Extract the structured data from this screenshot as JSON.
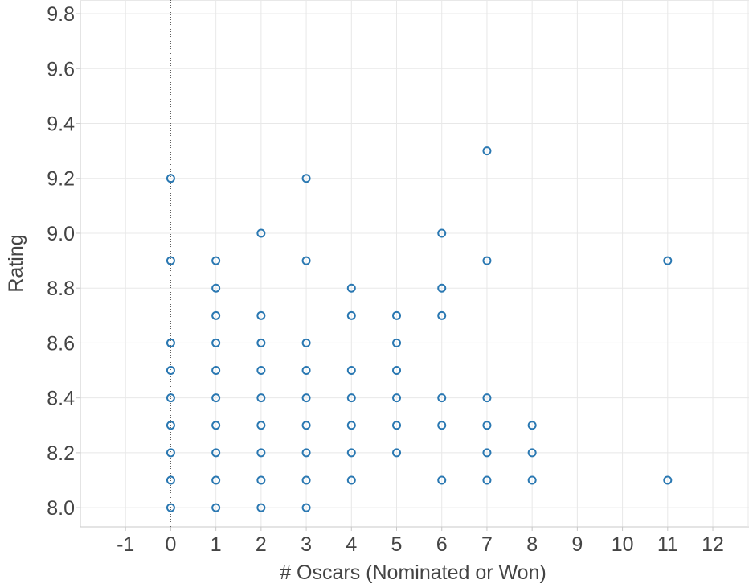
{
  "chart_data": {
    "type": "scatter",
    "title": "",
    "xlabel": "# Oscars (Nominated or Won)",
    "ylabel": "Rating",
    "xlim": [
      -2,
      12.8
    ],
    "ylim": [
      7.93,
      9.85
    ],
    "x_ticks": [
      -1,
      0,
      1,
      2,
      3,
      4,
      5,
      6,
      7,
      8,
      9,
      10,
      11,
      12
    ],
    "y_ticks": [
      8.0,
      8.2,
      8.4,
      8.6,
      8.8,
      9.0,
      9.2,
      9.4,
      9.6,
      9.8
    ],
    "grid": true,
    "marker": "hollow-circle",
    "point_color": "#2a78b2",
    "series": [
      {
        "points": [
          {
            "x": 0,
            "y": 8.0
          },
          {
            "x": 0,
            "y": 8.1
          },
          {
            "x": 0,
            "y": 8.2
          },
          {
            "x": 0,
            "y": 8.3
          },
          {
            "x": 0,
            "y": 8.4
          },
          {
            "x": 0,
            "y": 8.5
          },
          {
            "x": 0,
            "y": 8.6
          },
          {
            "x": 0,
            "y": 8.9
          },
          {
            "x": 0,
            "y": 9.2
          },
          {
            "x": 1,
            "y": 8.0
          },
          {
            "x": 1,
            "y": 8.1
          },
          {
            "x": 1,
            "y": 8.2
          },
          {
            "x": 1,
            "y": 8.3
          },
          {
            "x": 1,
            "y": 8.4
          },
          {
            "x": 1,
            "y": 8.5
          },
          {
            "x": 1,
            "y": 8.6
          },
          {
            "x": 1,
            "y": 8.7
          },
          {
            "x": 1,
            "y": 8.8
          },
          {
            "x": 1,
            "y": 8.9
          },
          {
            "x": 2,
            "y": 8.0
          },
          {
            "x": 2,
            "y": 8.1
          },
          {
            "x": 2,
            "y": 8.2
          },
          {
            "x": 2,
            "y": 8.3
          },
          {
            "x": 2,
            "y": 8.4
          },
          {
            "x": 2,
            "y": 8.5
          },
          {
            "x": 2,
            "y": 8.6
          },
          {
            "x": 2,
            "y": 8.7
          },
          {
            "x": 2,
            "y": 9.0
          },
          {
            "x": 3,
            "y": 8.0
          },
          {
            "x": 3,
            "y": 8.1
          },
          {
            "x": 3,
            "y": 8.2
          },
          {
            "x": 3,
            "y": 8.3
          },
          {
            "x": 3,
            "y": 8.4
          },
          {
            "x": 3,
            "y": 8.5
          },
          {
            "x": 3,
            "y": 8.6
          },
          {
            "x": 3,
            "y": 8.9
          },
          {
            "x": 3,
            "y": 9.2
          },
          {
            "x": 4,
            "y": 8.1
          },
          {
            "x": 4,
            "y": 8.2
          },
          {
            "x": 4,
            "y": 8.3
          },
          {
            "x": 4,
            "y": 8.4
          },
          {
            "x": 4,
            "y": 8.5
          },
          {
            "x": 4,
            "y": 8.7
          },
          {
            "x": 4,
            "y": 8.8
          },
          {
            "x": 5,
            "y": 8.2
          },
          {
            "x": 5,
            "y": 8.3
          },
          {
            "x": 5,
            "y": 8.4
          },
          {
            "x": 5,
            "y": 8.5
          },
          {
            "x": 5,
            "y": 8.6
          },
          {
            "x": 5,
            "y": 8.7
          },
          {
            "x": 6,
            "y": 8.1
          },
          {
            "x": 6,
            "y": 8.3
          },
          {
            "x": 6,
            "y": 8.4
          },
          {
            "x": 6,
            "y": 8.7
          },
          {
            "x": 6,
            "y": 8.8
          },
          {
            "x": 6,
            "y": 9.0
          },
          {
            "x": 7,
            "y": 8.1
          },
          {
            "x": 7,
            "y": 8.2
          },
          {
            "x": 7,
            "y": 8.3
          },
          {
            "x": 7,
            "y": 8.4
          },
          {
            "x": 7,
            "y": 8.9
          },
          {
            "x": 7,
            "y": 9.3
          },
          {
            "x": 8,
            "y": 8.1
          },
          {
            "x": 8,
            "y": 8.2
          },
          {
            "x": 8,
            "y": 8.3
          },
          {
            "x": 11,
            "y": 8.1
          },
          {
            "x": 11,
            "y": 8.9
          }
        ]
      }
    ]
  }
}
